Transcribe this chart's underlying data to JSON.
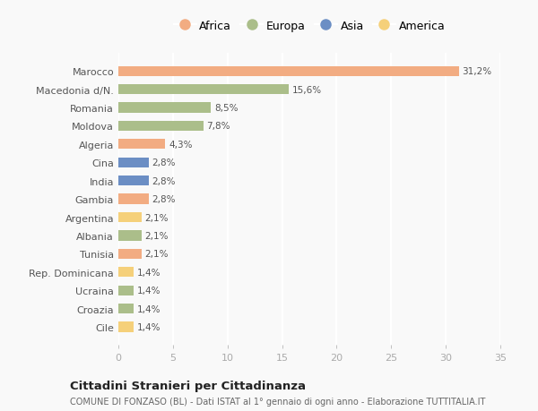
{
  "countries": [
    "Marocco",
    "Macedonia d/N.",
    "Romania",
    "Moldova",
    "Algeria",
    "Cina",
    "India",
    "Gambia",
    "Argentina",
    "Albania",
    "Tunisia",
    "Rep. Dominicana",
    "Ucraina",
    "Croazia",
    "Cile"
  ],
  "values": [
    31.2,
    15.6,
    8.5,
    7.8,
    4.3,
    2.8,
    2.8,
    2.8,
    2.1,
    2.1,
    2.1,
    1.4,
    1.4,
    1.4,
    1.4
  ],
  "labels": [
    "31,2%",
    "15,6%",
    "8,5%",
    "7,8%",
    "4,3%",
    "2,8%",
    "2,8%",
    "2,8%",
    "2,1%",
    "2,1%",
    "2,1%",
    "1,4%",
    "1,4%",
    "1,4%",
    "1,4%"
  ],
  "continents": [
    "Africa",
    "Europa",
    "Europa",
    "Europa",
    "Africa",
    "Asia",
    "Asia",
    "Africa",
    "America",
    "Europa",
    "Africa",
    "America",
    "Europa",
    "Europa",
    "America"
  ],
  "colors": {
    "Africa": "#F2AC82",
    "Europa": "#ABBE8A",
    "Asia": "#6B8EC4",
    "America": "#F5D07A"
  },
  "legend_order": [
    "Africa",
    "Europa",
    "Asia",
    "America"
  ],
  "title": "Cittadini Stranieri per Cittadinanza",
  "subtitle": "COMUNE DI FONZASO (BL) - Dati ISTAT al 1° gennaio di ogni anno - Elaborazione TUTTITALIA.IT",
  "xlim": [
    0,
    35
  ],
  "xticks": [
    0,
    5,
    10,
    15,
    20,
    25,
    30,
    35
  ],
  "background_color": "#f9f9f9",
  "grid_color": "#ffffff",
  "label_color": "#555555",
  "ytick_color": "#555555",
  "xtick_color": "#aaaaaa"
}
